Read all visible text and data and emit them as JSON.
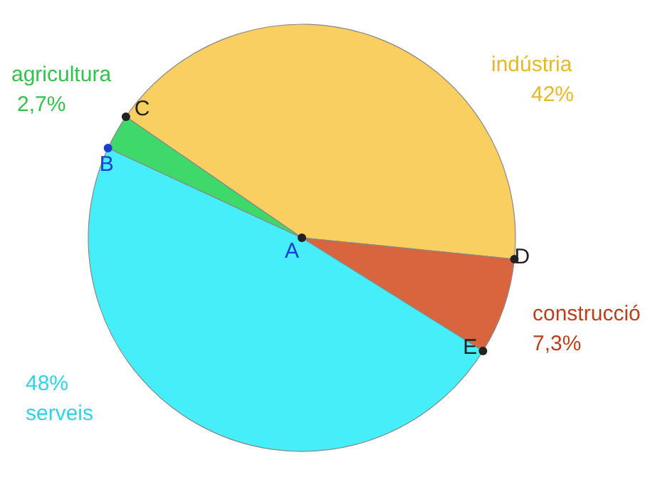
{
  "chart_data": {
    "type": "pie",
    "categories": [
      "indústria",
      "construcció",
      "serveis",
      "agricultura"
    ],
    "values": [
      42,
      7.3,
      48,
      2.7
    ],
    "colors": [
      "#f9cf61",
      "#d9653f",
      "#45eef8",
      "#3fd96b"
    ],
    "value_labels": [
      "42%",
      "7,3%",
      "48%",
      "2,7%"
    ],
    "annotations": [
      "A",
      "B",
      "C",
      "D",
      "E"
    ]
  }
}
